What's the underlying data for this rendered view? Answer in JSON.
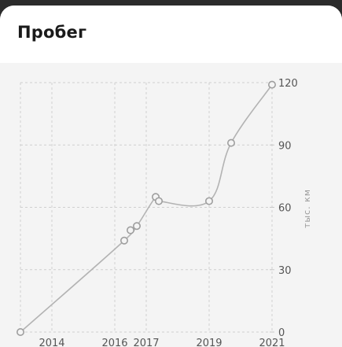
{
  "header": {
    "title": "Пробег"
  },
  "chart_data": {
    "type": "line",
    "title": "Пробег",
    "xlabel": "",
    "ylabel": "тыс. км",
    "x_ticks": [
      "2014",
      "2016",
      "2017",
      "2019",
      "2021"
    ],
    "y_ticks": [
      0,
      30,
      60,
      90,
      120
    ],
    "ylim": [
      0,
      120
    ],
    "xlim": [
      "2013",
      "2021"
    ],
    "grid": true,
    "y_axis_position": "right",
    "points": [
      {
        "x": "2013",
        "y": 0
      },
      {
        "x": "2016.3",
        "y": 44
      },
      {
        "x": "2016.5",
        "y": 49
      },
      {
        "x": "2016.7",
        "y": 51
      },
      {
        "x": "2017.3",
        "y": 65
      },
      {
        "x": "2017.4",
        "y": 63
      },
      {
        "x": "2019",
        "y": 63
      },
      {
        "x": "2019.7",
        "y": 91
      },
      {
        "x": "2021",
        "y": 119
      }
    ],
    "colors": {
      "line": "#b3b3b3",
      "point_stroke": "#9e9e9e",
      "grid": "#cfcfcf"
    }
  }
}
